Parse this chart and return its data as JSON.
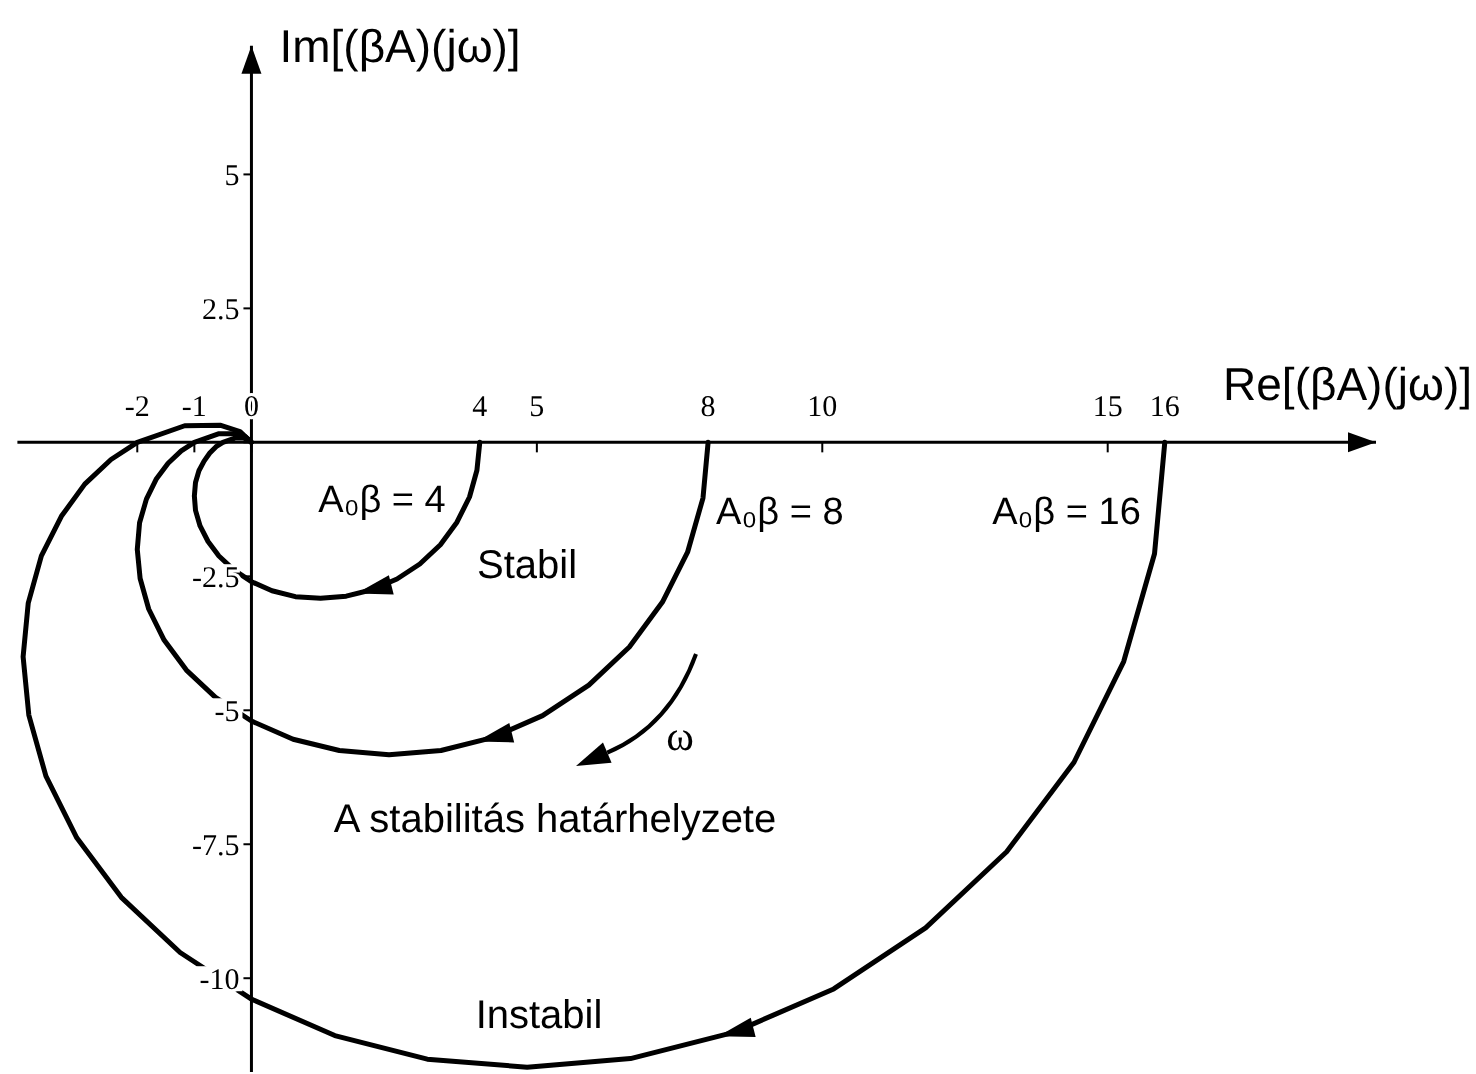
{
  "chart_data": {
    "type": "line",
    "xlabel": "Re[(βA)(jω)]",
    "ylabel": "Im[(βA)(jω)]",
    "annotations": [
      "Stabil",
      "A stabilitás határhelyzete",
      "ω",
      "Instabil"
    ],
    "series": [
      {
        "name": "A₀β = 4",
        "color": "#000000",
        "x": [
          4,
          3.95,
          3.82,
          3.6,
          3.31,
          2.95,
          2.55,
          2.11,
          1.66,
          1.21,
          0.77,
          0.36,
          0,
          -0.31,
          -0.57,
          -0.76,
          -0.9,
          -0.98,
          -1,
          -0.98,
          -0.92,
          -0.83,
          -0.73,
          -0.62,
          -0.5,
          -0.29,
          -0.14,
          -0.05,
          0
        ],
        "values": [
          0,
          -0.52,
          -1.02,
          -1.49,
          -1.91,
          -2.27,
          -2.55,
          -2.75,
          -2.87,
          -2.91,
          -2.88,
          -2.77,
          -2.6,
          -2.38,
          -2.12,
          -1.85,
          -1.56,
          -1.27,
          -1,
          -0.75,
          -0.53,
          -0.35,
          -0.2,
          -0.08,
          0,
          0.08,
          0.08,
          0.05,
          0
        ]
      },
      {
        "name": "A₀β = 8",
        "color": "#000000",
        "x": [
          8,
          7.91,
          7.64,
          7.2,
          6.62,
          5.91,
          5.1,
          4.22,
          3.32,
          2.41,
          1.54,
          0.73,
          0,
          -0.63,
          -1.14,
          -1.53,
          -1.8,
          -1.95,
          -2,
          -1.96,
          -1.84,
          -1.67,
          -1.46,
          -1.23,
          -1,
          -0.58,
          -0.28,
          -0.1,
          0
        ],
        "values": [
          0,
          -1.04,
          -2.05,
          -2.98,
          -3.82,
          -4.53,
          -5.1,
          -5.51,
          -5.75,
          -5.83,
          -5.75,
          -5.54,
          -5.2,
          -4.76,
          -4.25,
          -3.69,
          -3.11,
          -2.54,
          -2,
          -1.5,
          -1.06,
          -0.69,
          -0.39,
          -0.16,
          0,
          0.16,
          0.16,
          0.1,
          0
        ]
      },
      {
        "name": "A₀β = 16",
        "color": "#000000",
        "x": [
          16,
          15.82,
          15.28,
          14.41,
          13.23,
          11.81,
          10.2,
          8.45,
          6.64,
          4.83,
          3.08,
          1.46,
          0,
          -1.25,
          -2.28,
          -3.06,
          -3.6,
          -3.9,
          -4,
          -3.91,
          -3.68,
          -3.33,
          -2.92,
          -2.46,
          -2,
          -1.17,
          -0.55,
          -0.2,
          0
        ],
        "values": [
          0,
          -2.08,
          -4.09,
          -5.97,
          -7.64,
          -9.06,
          -10.2,
          -11.01,
          -11.5,
          -11.66,
          -11.51,
          -11.07,
          -10.39,
          -9.52,
          -8.49,
          -7.38,
          -6.23,
          -5.09,
          -4,
          -3,
          -2.12,
          -1.38,
          -0.78,
          -0.32,
          0,
          0.31,
          0.32,
          0.2,
          0
        ]
      }
    ],
    "xlim": [
      -4.1,
      19.7
    ],
    "xticks": [
      -2,
      -1,
      0,
      4,
      5,
      8,
      10,
      15,
      16
    ],
    "ylim": [
      -11.75,
      7.4
    ],
    "yticks": [
      -10,
      -7.5,
      -5,
      -2.5,
      {
        "value": 0,
        "label": null
      },
      2.5,
      5
    ],
    "marker": "none",
    "line_style": "solid"
  }
}
